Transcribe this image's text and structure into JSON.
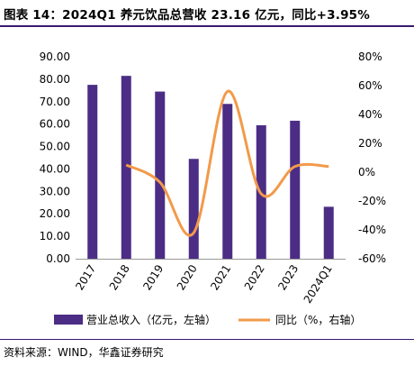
{
  "header": {
    "title": "图表 14：2024Q1 养元饮品总营收 23.16 亿元，同比+3.95%"
  },
  "footer": {
    "source": "资料来源：WIND，华鑫证券研究"
  },
  "colors": {
    "bar": "#4b2d85",
    "line": "#f29a4a",
    "rule": "#3a1a6e"
  },
  "chart_data": {
    "type": "bar",
    "categories": [
      "2017",
      "2018",
      "2019",
      "2020",
      "2021",
      "2022",
      "2023",
      "2024Q1"
    ],
    "series": [
      {
        "name": "营业总收入（亿元，左轴）",
        "type": "bar",
        "axis": "left",
        "values": [
          77.5,
          81.5,
          74.5,
          44.5,
          69.0,
          59.5,
          61.5,
          23.16
        ]
      },
      {
        "name": "同比（%，右轴）",
        "type": "line",
        "axis": "right",
        "values": [
          null,
          5.0,
          -7.0,
          -42.0,
          56.0,
          -15.0,
          4.0,
          3.95
        ]
      }
    ],
    "y_left": {
      "min": 0,
      "max": 90,
      "step": 10,
      "tick_labels": [
        "0.00",
        "10.00",
        "20.00",
        "30.00",
        "40.00",
        "50.00",
        "60.00",
        "70.00",
        "80.00",
        "90.00"
      ]
    },
    "y_right": {
      "min": -60,
      "max": 80,
      "step": 20,
      "tick_labels": [
        "-60%",
        "-40%",
        "-20%",
        "0%",
        "20%",
        "40%",
        "60%",
        "80%"
      ]
    },
    "legend_position": "bottom"
  }
}
